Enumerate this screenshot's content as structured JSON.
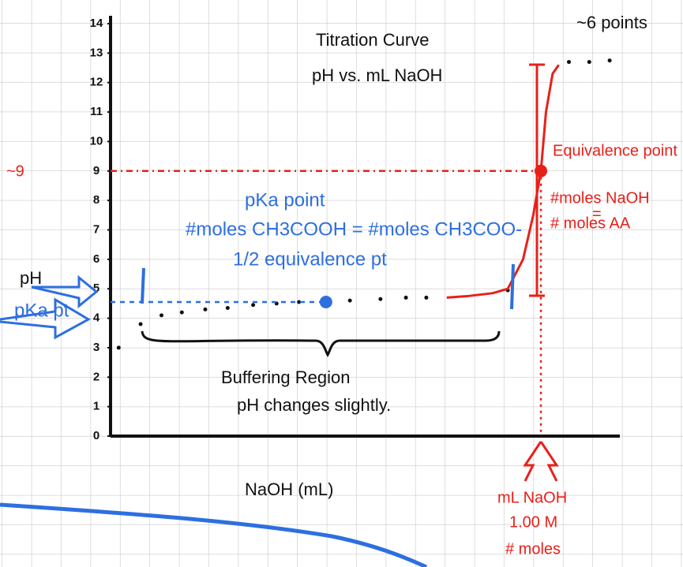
{
  "chart_data": {
    "type": "scatter",
    "title": "Titration Curve",
    "subtitle": "pH vs. mL NaOH",
    "x_label": "NaOH (mL)",
    "xlim": [
      0,
      100
    ],
    "ylim": [
      0,
      14
    ],
    "yticks": [
      0,
      1,
      2,
      3,
      4,
      5,
      6,
      7,
      8,
      9,
      10,
      11,
      12,
      13,
      14
    ],
    "grid": true,
    "series": [
      {
        "color": "#111111",
        "style": "dots",
        "x": [
          1.6,
          5.9,
          10,
          14,
          18.6,
          23,
          28,
          32.6,
          37,
          47,
          53,
          58,
          62,
          78,
          90,
          94,
          98
        ],
        "values": [
          3.0,
          3.8,
          4.1,
          4.2,
          4.3,
          4.35,
          4.45,
          4.5,
          4.55,
          4.6,
          4.65,
          4.7,
          4.7,
          4.95,
          12.7,
          12.7,
          12.75
        ]
      },
      {
        "color": "#e8201a",
        "style": "line",
        "x": [
          66,
          70,
          75,
          78,
          81,
          83,
          84.5,
          85.5,
          86.8,
          88
        ],
        "values": [
          4.7,
          4.75,
          4.85,
          5,
          6,
          7.5,
          9,
          11,
          12.3,
          12.6
        ]
      }
    ],
    "pka_point": {
      "x": 42.3,
      "y": 4.55,
      "color": "#2d6fe0"
    },
    "equivalence_point": {
      "x": 84.5,
      "y": 9,
      "color": "#e8201a"
    },
    "annotations": {
      "points_note": "~6 points",
      "nine": "~9",
      "equivalence": "Equivalence point",
      "moles_naoh": "#moles NaOH",
      "equals": "=",
      "moles_aa": "# moles AA",
      "pka_title": "pKa point",
      "pka_eq": "#moles CH3COOH = #moles CH3COO-",
      "half_eq": "1/2 equivalence pt",
      "ph": "pH",
      "pka_pt": "pKa pt",
      "buffer": "Buffering Region",
      "buffer_note": "pH changes slightly.",
      "ml_naoh": "mL NaOH",
      "molarity": "1.00 M",
      "moles": "# moles"
    }
  }
}
